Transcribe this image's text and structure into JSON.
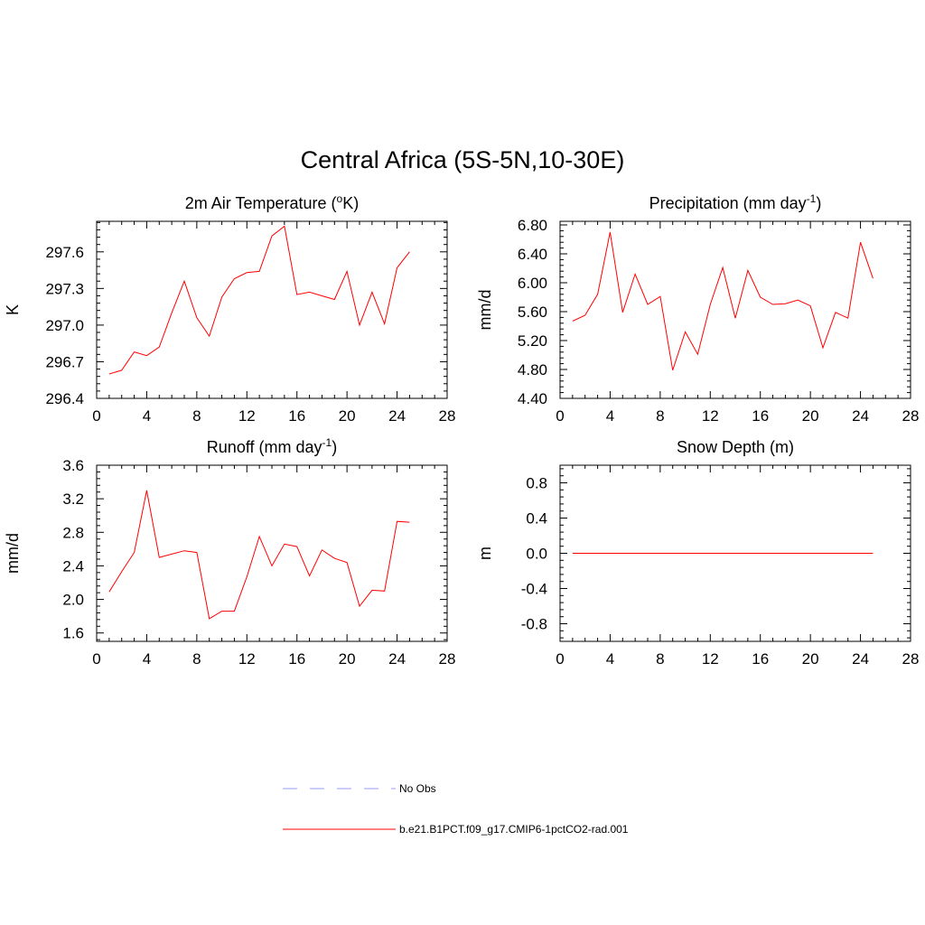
{
  "title": "Central Africa (5S-5N,10-30E)",
  "colors": {
    "model": "#ff0000",
    "obs": "#9999ff"
  },
  "legend": [
    {
      "label": "No Obs",
      "style": "dashed",
      "color": "#9999ff"
    },
    {
      "label": "b.e21.B1PCT.f09_g17.CMIP6-1pctCO2-rad.001",
      "style": "solid",
      "color": "#ff0000"
    }
  ],
  "chart_data": [
    {
      "type": "line",
      "title": "2m Air Temperature",
      "title_unit": "K",
      "title_sup": "o",
      "title_suffix": ")",
      "ylabel": "K",
      "xlim": [
        0,
        28
      ],
      "ylim": [
        296.4,
        297.85
      ],
      "xticks": [
        0,
        4,
        8,
        12,
        16,
        20,
        24,
        28
      ],
      "yticks": [
        296.4,
        296.7,
        297.0,
        297.3,
        297.6
      ],
      "ytick_labels": [
        "296.4",
        "296.7",
        "297.0",
        "297.3",
        "297.6"
      ],
      "x": [
        1,
        2,
        3,
        4,
        5,
        6,
        7,
        8,
        9,
        10,
        11,
        12,
        13,
        14,
        15,
        16,
        17,
        18,
        19,
        20,
        21,
        22,
        23,
        24,
        25
      ],
      "series": [
        {
          "values": [
            296.6,
            296.63,
            296.78,
            296.75,
            296.82,
            297.1,
            297.36,
            297.06,
            296.91,
            297.23,
            297.38,
            297.43,
            297.44,
            297.73,
            297.81,
            297.25,
            297.27,
            297.24,
            297.21,
            297.44,
            297.0,
            297.27,
            297.01,
            297.47,
            297.6
          ]
        }
      ]
    },
    {
      "type": "line",
      "title": "Precipitation (mm day",
      "title_sup": "-1",
      "title_suffix": ")",
      "ylabel": "mm/d",
      "xlim": [
        0,
        28
      ],
      "ylim": [
        4.4,
        6.85
      ],
      "xticks": [
        0,
        4,
        8,
        12,
        16,
        20,
        24,
        28
      ],
      "yticks": [
        4.4,
        4.8,
        5.2,
        5.6,
        6.0,
        6.4,
        6.8
      ],
      "ytick_labels": [
        "4.40",
        "4.80",
        "5.20",
        "5.60",
        "6.00",
        "6.40",
        "6.80"
      ],
      "x": [
        1,
        2,
        3,
        4,
        5,
        6,
        7,
        8,
        9,
        10,
        11,
        12,
        13,
        14,
        15,
        16,
        17,
        18,
        19,
        20,
        21,
        22,
        23,
        24,
        25
      ],
      "series": [
        {
          "values": [
            5.47,
            5.55,
            5.84,
            6.7,
            5.59,
            6.12,
            5.7,
            5.81,
            4.79,
            5.32,
            5.01,
            5.7,
            6.21,
            5.51,
            6.17,
            5.8,
            5.7,
            5.71,
            5.76,
            5.68,
            5.1,
            5.59,
            5.51,
            6.56,
            6.06
          ]
        }
      ]
    },
    {
      "type": "line",
      "title": "Runoff (mm day",
      "title_sup": "-1",
      "title_suffix": ")",
      "ylabel": "mm/d",
      "xlim": [
        0,
        28
      ],
      "ylim": [
        1.5,
        3.6
      ],
      "xticks": [
        0,
        4,
        8,
        12,
        16,
        20,
        24,
        28
      ],
      "yticks": [
        1.6,
        2.0,
        2.4,
        2.8,
        3.2,
        3.6
      ],
      "ytick_labels": [
        "1.6",
        "2.0",
        "2.4",
        "2.8",
        "3.2",
        "3.6"
      ],
      "x": [
        1,
        2,
        3,
        4,
        5,
        6,
        7,
        8,
        9,
        10,
        11,
        12,
        13,
        14,
        15,
        16,
        17,
        18,
        19,
        20,
        21,
        22,
        23,
        24,
        25
      ],
      "series": [
        {
          "values": [
            2.09,
            2.33,
            2.56,
            3.3,
            2.5,
            2.54,
            2.58,
            2.56,
            1.77,
            1.86,
            1.86,
            2.27,
            2.75,
            2.4,
            2.66,
            2.63,
            2.28,
            2.59,
            2.49,
            2.44,
            1.92,
            2.11,
            2.1,
            2.93,
            2.92
          ]
        }
      ]
    },
    {
      "type": "line",
      "title": "Snow Depth (m)",
      "title_sup": "",
      "title_suffix": "",
      "ylabel": "m",
      "xlim": [
        0,
        28
      ],
      "ylim": [
        -1.0,
        1.0
      ],
      "xticks": [
        0,
        4,
        8,
        12,
        16,
        20,
        24,
        28
      ],
      "yticks": [
        -0.8,
        -0.4,
        0.0,
        0.4,
        0.8
      ],
      "ytick_labels": [
        "-0.8",
        "-0.4",
        "0.0",
        "0.4",
        "0.8"
      ],
      "x": [
        1,
        2,
        3,
        4,
        5,
        6,
        7,
        8,
        9,
        10,
        11,
        12,
        13,
        14,
        15,
        16,
        17,
        18,
        19,
        20,
        21,
        22,
        23,
        24,
        25
      ],
      "series": [
        {
          "values": [
            0,
            0,
            0,
            0,
            0,
            0,
            0,
            0,
            0,
            0,
            0,
            0,
            0,
            0,
            0,
            0,
            0,
            0,
            0,
            0,
            0,
            0,
            0,
            0,
            0
          ]
        }
      ]
    }
  ]
}
